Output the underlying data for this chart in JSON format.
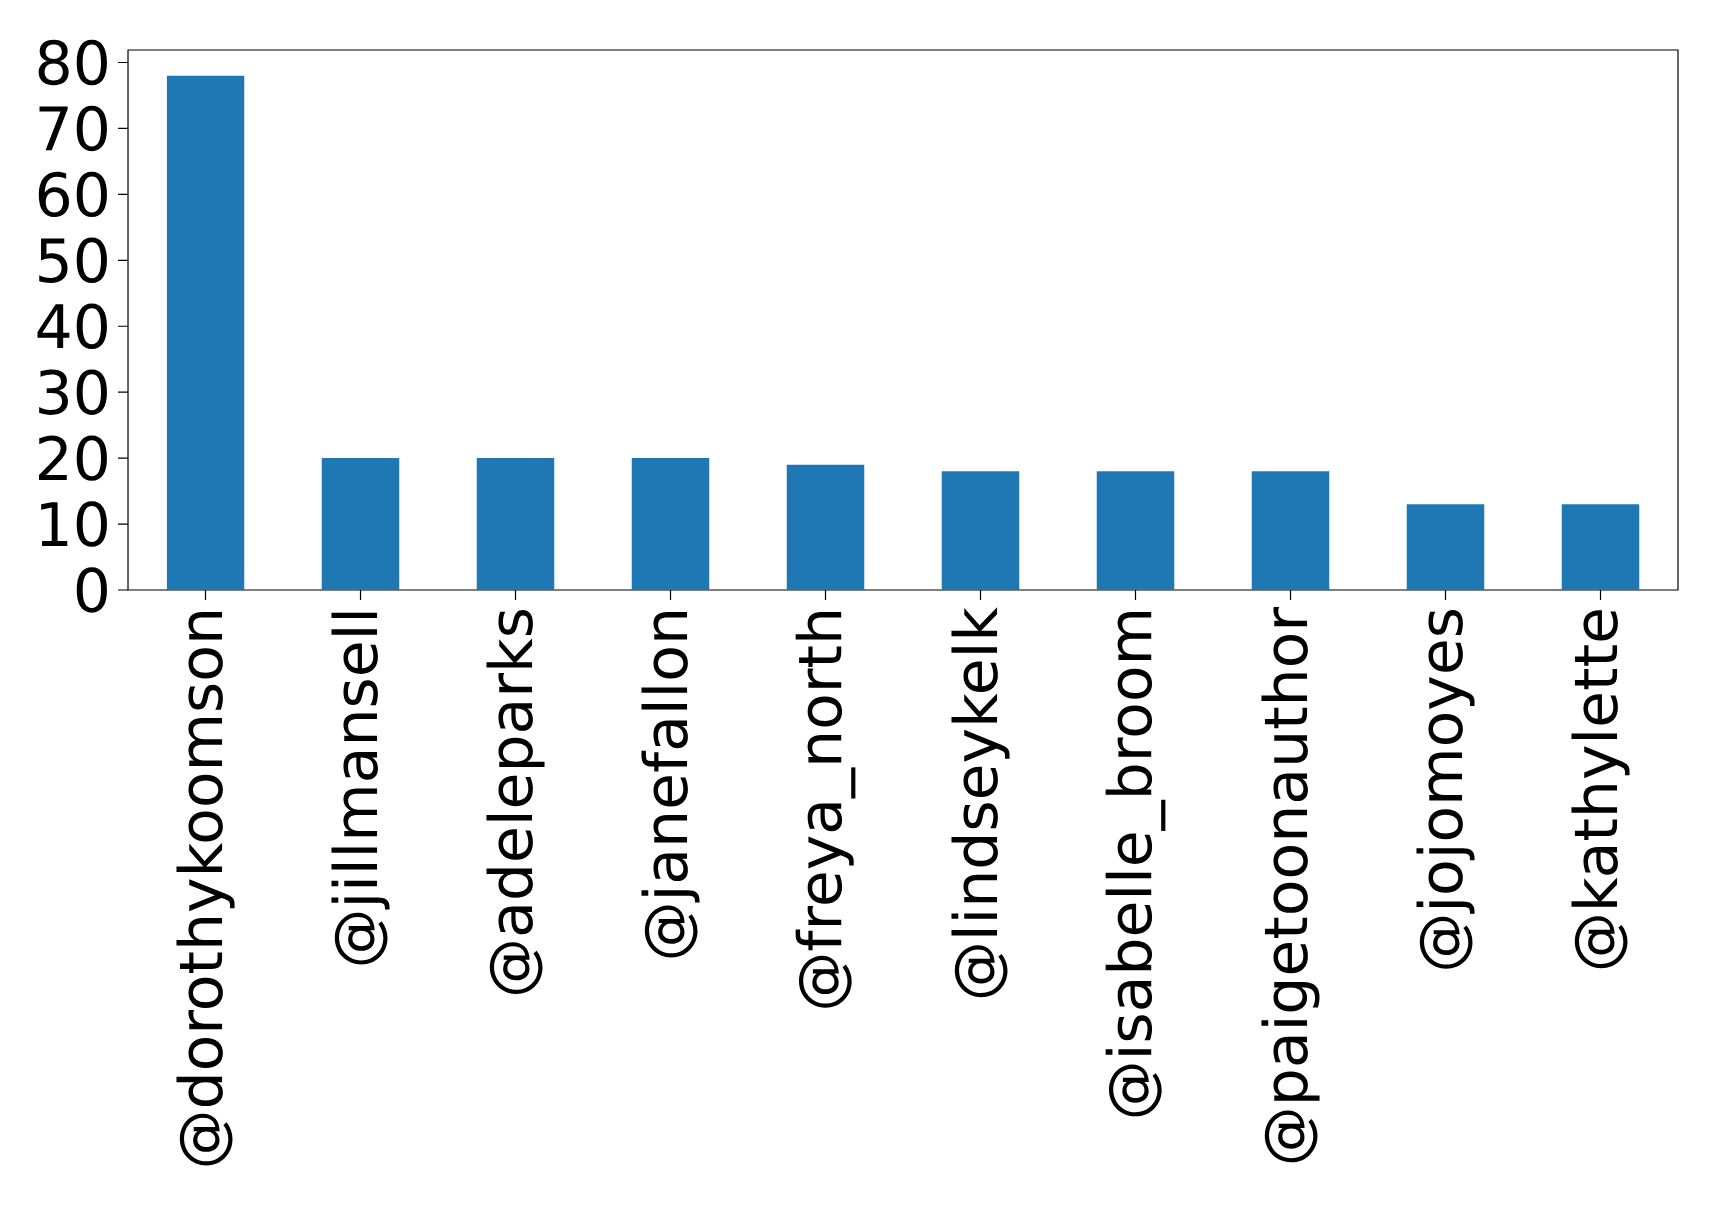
{
  "chart_data": {
    "type": "bar",
    "categories": [
      "@dorothykoomson",
      "@jillmansell",
      "@adeleparks",
      "@janefallon",
      "@freya_north",
      "@lindseykelk",
      "@isabelle_broom",
      "@paigetoonauthor",
      "@jojomoyes",
      "@kathylette"
    ],
    "values": [
      78,
      20,
      20,
      20,
      19,
      18,
      18,
      18,
      13,
      13
    ],
    "color": "#1f77b4",
    "ylim": [
      0,
      81.9
    ],
    "yticks": [
      0,
      10,
      20,
      30,
      40,
      50,
      60,
      70,
      80
    ],
    "grid": false
  }
}
